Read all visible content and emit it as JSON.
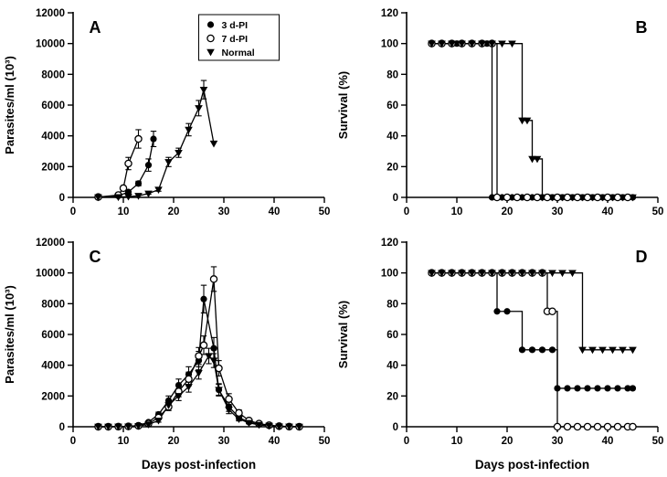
{
  "legend": {
    "items": [
      {
        "label": "3 d-PI",
        "marker": "filled-circle"
      },
      {
        "label": "7 d-PI",
        "marker": "open-circle"
      },
      {
        "label": "Normal",
        "marker": "filled-triangle"
      }
    ]
  },
  "colors": {
    "axis": "#000000",
    "background": "#ffffff"
  },
  "chart_data": [
    {
      "id": "A",
      "letter": "A",
      "letter_pos": "left",
      "type": "line",
      "step": false,
      "show_legend": true,
      "xlabel": "",
      "ylabel": "Parasites/ml (10³)",
      "xlim": [
        0,
        50
      ],
      "ylim": [
        0,
        12000
      ],
      "xticks": [
        0,
        10,
        20,
        30,
        40,
        50
      ],
      "yticks": [
        0,
        2000,
        4000,
        6000,
        8000,
        10000,
        12000
      ],
      "series": [
        {
          "name": "3 d-PI",
          "marker": "filled-circle",
          "x": [
            5,
            9,
            11,
            13,
            15,
            16
          ],
          "y": [
            20,
            100,
            350,
            900,
            2100,
            3800
          ],
          "yerr": [
            0,
            0,
            50,
            150,
            400,
            500
          ]
        },
        {
          "name": "7 d-PI",
          "marker": "open-circle",
          "x": [
            5,
            9,
            10,
            11,
            13
          ],
          "y": [
            20,
            150,
            600,
            2200,
            3800
          ],
          "yerr": [
            0,
            0,
            100,
            400,
            600
          ]
        },
        {
          "name": "Normal",
          "marker": "filled-triangle",
          "x": [
            5,
            9,
            11,
            13,
            15,
            17,
            19,
            21,
            23,
            25,
            26,
            28
          ],
          "y": [
            10,
            20,
            50,
            100,
            250,
            500,
            2300,
            2900,
            4400,
            5800,
            7000,
            3500
          ],
          "yerr": [
            0,
            0,
            0,
            0,
            50,
            100,
            300,
            300,
            400,
            500,
            600,
            0
          ]
        }
      ]
    },
    {
      "id": "B",
      "letter": "B",
      "letter_pos": "right",
      "type": "line",
      "step": true,
      "show_legend": false,
      "xlabel": "",
      "ylabel": "Survival (%)",
      "xlim": [
        0,
        50
      ],
      "ylim": [
        0,
        120
      ],
      "xticks": [
        0,
        10,
        20,
        30,
        40,
        50
      ],
      "yticks": [
        0,
        20,
        40,
        60,
        80,
        100,
        120
      ],
      "series": [
        {
          "name": "3 d-PI",
          "marker": "filled-circle",
          "x": [
            5,
            7,
            9,
            10,
            11,
            13,
            15,
            16,
            17,
            19,
            21,
            23,
            25,
            27,
            29,
            31,
            33,
            35,
            37,
            39,
            41,
            43,
            45
          ],
          "y": [
            100,
            100,
            100,
            100,
            100,
            100,
            100,
            100,
            0,
            0,
            0,
            0,
            0,
            0,
            0,
            0,
            0,
            0,
            0,
            0,
            0,
            0,
            0
          ]
        },
        {
          "name": "7 d-PI",
          "marker": "open-circle",
          "x": [
            5,
            7,
            9,
            11,
            13,
            15,
            17,
            18,
            20,
            22,
            24,
            26,
            28,
            30,
            32,
            34,
            36,
            38,
            40,
            42,
            44
          ],
          "y": [
            100,
            100,
            100,
            100,
            100,
            100,
            100,
            0,
            0,
            0,
            0,
            0,
            0,
            0,
            0,
            0,
            0,
            0,
            0,
            0,
            0
          ]
        },
        {
          "name": "Normal",
          "marker": "filled-triangle",
          "x": [
            5,
            7,
            9,
            11,
            13,
            15,
            17,
            19,
            21,
            23,
            24,
            25,
            26,
            27,
            29,
            31,
            33,
            35,
            37,
            39,
            41,
            43,
            45
          ],
          "y": [
            100,
            100,
            100,
            100,
            100,
            100,
            100,
            100,
            100,
            50,
            50,
            25,
            25,
            0,
            0,
            0,
            0,
            0,
            0,
            0,
            0,
            0,
            0
          ]
        }
      ]
    },
    {
      "id": "C",
      "letter": "C",
      "letter_pos": "left",
      "type": "line",
      "step": false,
      "show_legend": false,
      "xlabel": "Days post-infection",
      "ylabel": "Parasites/ml (10³)",
      "xlim": [
        0,
        50
      ],
      "ylim": [
        0,
        12000
      ],
      "xticks": [
        0,
        10,
        20,
        30,
        40,
        50
      ],
      "yticks": [
        0,
        2000,
        4000,
        6000,
        8000,
        10000,
        12000
      ],
      "series": [
        {
          "name": "3 d-PI",
          "marker": "filled-circle",
          "x": [
            5,
            7,
            9,
            11,
            13,
            15,
            17,
            19,
            21,
            23,
            25,
            26,
            28,
            29,
            31,
            33,
            35,
            37,
            39,
            41,
            43,
            45
          ],
          "y": [
            0,
            0,
            10,
            30,
            80,
            300,
            800,
            1700,
            2700,
            3400,
            4300,
            8300,
            5100,
            2400,
            1300,
            600,
            300,
            150,
            80,
            30,
            10,
            0
          ],
          "yerr": [
            0,
            0,
            0,
            0,
            30,
            80,
            150,
            300,
            400,
            500,
            600,
            900,
            700,
            400,
            300,
            150,
            80,
            0,
            0,
            0,
            0,
            0
          ]
        },
        {
          "name": "7 d-PI",
          "marker": "open-circle",
          "x": [
            5,
            7,
            9,
            11,
            13,
            15,
            17,
            19,
            21,
            23,
            25,
            26,
            28,
            29,
            31,
            33,
            35,
            37,
            39,
            41,
            43,
            45
          ],
          "y": [
            0,
            0,
            10,
            20,
            60,
            200,
            600,
            1300,
            2300,
            3100,
            4600,
            5300,
            9600,
            3800,
            1800,
            900,
            400,
            200,
            100,
            40,
            10,
            0
          ],
          "yerr": [
            0,
            0,
            0,
            0,
            20,
            60,
            120,
            250,
            350,
            450,
            550,
            600,
            800,
            500,
            350,
            200,
            100,
            0,
            0,
            0,
            0,
            0
          ]
        },
        {
          "name": "Normal",
          "marker": "filled-triangle",
          "x": [
            5,
            7,
            9,
            11,
            13,
            15,
            17,
            19,
            21,
            23,
            25,
            27,
            28,
            29,
            31,
            33,
            35,
            37,
            39,
            41,
            43,
            45
          ],
          "y": [
            0,
            0,
            10,
            20,
            50,
            150,
            400,
            1400,
            2000,
            2600,
            3500,
            4600,
            4300,
            2400,
            1100,
            500,
            250,
            120,
            60,
            20,
            10,
            0
          ],
          "yerr": [
            0,
            0,
            0,
            0,
            20,
            50,
            100,
            250,
            300,
            350,
            400,
            500,
            450,
            350,
            250,
            120,
            60,
            0,
            0,
            0,
            0,
            0
          ]
        }
      ]
    },
    {
      "id": "D",
      "letter": "D",
      "letter_pos": "right",
      "type": "line",
      "step": true,
      "show_legend": false,
      "xlabel": "Days post-infection",
      "ylabel": "Survival (%)",
      "xlim": [
        0,
        50
      ],
      "ylim": [
        0,
        120
      ],
      "xticks": [
        0,
        10,
        20,
        30,
        40,
        50
      ],
      "yticks": [
        0,
        20,
        40,
        60,
        80,
        100,
        120
      ],
      "series": [
        {
          "name": "3 d-PI",
          "marker": "filled-circle",
          "x": [
            5,
            7,
            9,
            11,
            13,
            15,
            17,
            18,
            20,
            23,
            25,
            27,
            29,
            30,
            32,
            34,
            36,
            38,
            40,
            42,
            44,
            45
          ],
          "y": [
            100,
            100,
            100,
            100,
            100,
            100,
            100,
            75,
            75,
            50,
            50,
            50,
            50,
            25,
            25,
            25,
            25,
            25,
            25,
            25,
            25,
            25
          ]
        },
        {
          "name": "7 d-PI",
          "marker": "open-circle",
          "x": [
            5,
            7,
            9,
            11,
            13,
            15,
            17,
            19,
            21,
            23,
            25,
            27,
            28,
            29,
            30,
            32,
            34,
            36,
            38,
            40,
            42,
            44,
            45
          ],
          "y": [
            100,
            100,
            100,
            100,
            100,
            100,
            100,
            100,
            100,
            100,
            100,
            100,
            75,
            75,
            0,
            0,
            0,
            0,
            0,
            0,
            0,
            0,
            0
          ]
        },
        {
          "name": "Normal",
          "marker": "filled-triangle",
          "x": [
            5,
            7,
            9,
            11,
            13,
            15,
            17,
            19,
            21,
            23,
            25,
            27,
            29,
            31,
            33,
            35,
            37,
            39,
            41,
            43,
            45
          ],
          "y": [
            100,
            100,
            100,
            100,
            100,
            100,
            100,
            100,
            100,
            100,
            100,
            100,
            100,
            100,
            100,
            50,
            50,
            50,
            50,
            50,
            50
          ]
        }
      ]
    }
  ]
}
